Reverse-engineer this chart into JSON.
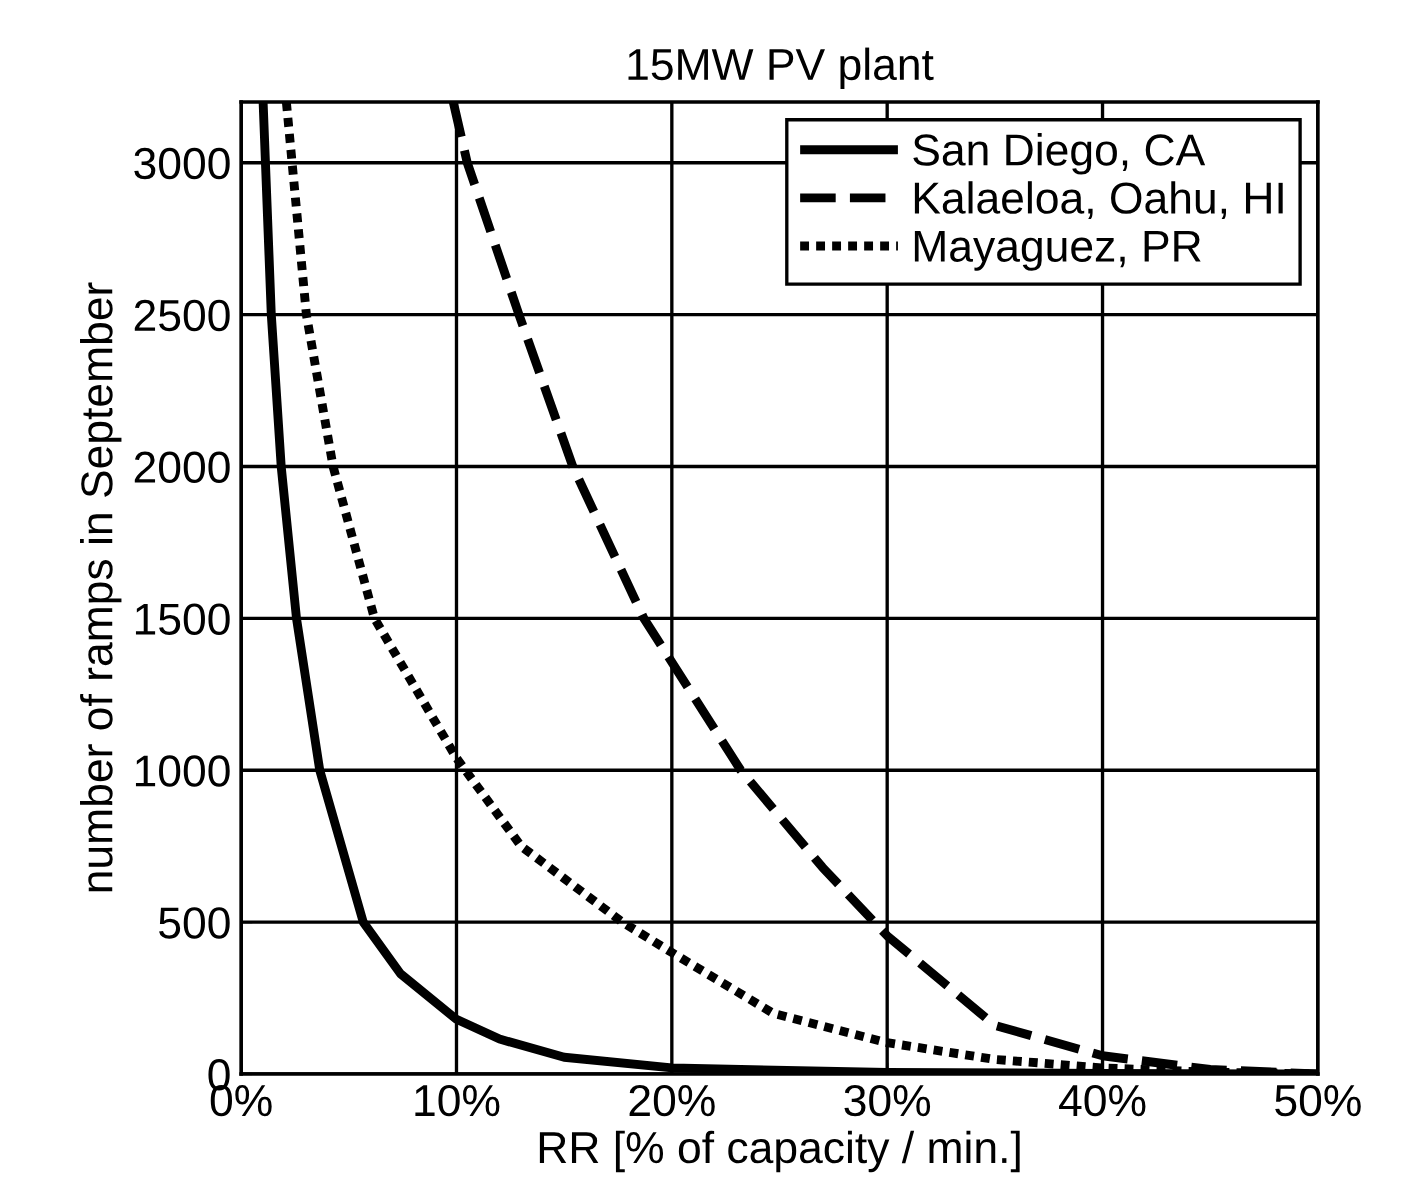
{
  "chart_data": {
    "type": "line",
    "title": "15MW PV plant",
    "xlabel": "RR [% of capacity / min.]",
    "ylabel": "number of ramps in September",
    "xlim": [
      0,
      50
    ],
    "ylim": [
      0,
      3200
    ],
    "xticks": [
      {
        "value": 0,
        "label": "0%"
      },
      {
        "value": 10,
        "label": "10%"
      },
      {
        "value": 20,
        "label": "20%"
      },
      {
        "value": 30,
        "label": "30%"
      },
      {
        "value": 40,
        "label": "40%"
      },
      {
        "value": 50,
        "label": "50%"
      }
    ],
    "yticks": [
      0,
      500,
      1000,
      1500,
      2000,
      2500,
      3000
    ],
    "grid": true,
    "legend": "top right",
    "series": [
      {
        "name": "San Diego, CA",
        "color": "#000000",
        "line_style": "solid",
        "x": [
          1.02,
          1.4,
          1.86,
          2.57,
          3.65,
          5.67,
          7.4,
          10,
          12,
          15,
          20,
          30,
          40,
          50
        ],
        "values": [
          3200,
          2500,
          2000,
          1500,
          1000,
          500,
          330,
          180,
          115,
          55,
          20,
          5,
          2,
          0
        ]
      },
      {
        "name": "Kalaeloa, Oahu, HI",
        "color": "#000000",
        "line_style": "dashed",
        "x": [
          9.85,
          10.5,
          12.9,
          15.4,
          18.7,
          23.2,
          27,
          30,
          35,
          40,
          45,
          50
        ],
        "values": [
          3200,
          3000,
          2500,
          2000,
          1500,
          1000,
          680,
          455,
          160,
          60,
          15,
          0
        ]
      },
      {
        "name": "Mayaguez, PR",
        "color": "#000000",
        "line_style": "dotted",
        "x": [
          2.1,
          3.03,
          4.27,
          6.19,
          10,
          13,
          17.7,
          20,
          24.7,
          30,
          35,
          40,
          45,
          50
        ],
        "values": [
          3200,
          2500,
          2000,
          1500,
          1040,
          750,
          500,
          400,
          200,
          103,
          48,
          20,
          6,
          0
        ]
      }
    ]
  }
}
